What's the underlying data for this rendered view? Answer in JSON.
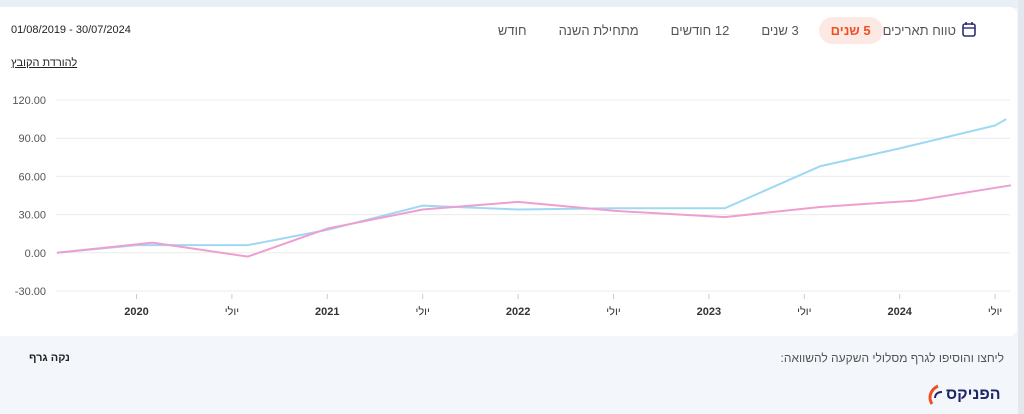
{
  "header": {
    "date_range": "01/08/2019 - 30/07/2024",
    "download_link": "להורדת הקובץ",
    "tabs": [
      {
        "label": "חודש",
        "active": false
      },
      {
        "label": "מתחילת השנה",
        "active": false
      },
      {
        "label": "12 חודשים",
        "active": false
      },
      {
        "label": "3 שנים",
        "active": false
      },
      {
        "label": "5 שנים",
        "active": true
      }
    ],
    "date_range_button": "טווח תאריכים",
    "date_range_icon": "calendar-icon"
  },
  "footer": {
    "compare_text": "ליחצו והוסיפו לגרף מסלולי השקעה להשוואה:",
    "clear_chart": "נקה גרף",
    "logo_text": "הפניקס"
  },
  "colors": {
    "accent": "#f04e23",
    "series_blue": "#9fd8f5",
    "series_pink": "#ee9fcf"
  },
  "chart_data": {
    "type": "line",
    "title": "",
    "xlabel": "",
    "ylabel": "",
    "x_unit": "months since 08/2019",
    "xlim": [
      0,
      60
    ],
    "ylim": [
      -30,
      120
    ],
    "y_ticks": [
      "120.00",
      "90.00",
      "60.00",
      "30.00",
      "0.00",
      "-30.00"
    ],
    "y_tick_values": [
      120,
      90,
      60,
      30,
      0,
      -30
    ],
    "x_ticks": [
      {
        "month": 5,
        "label": "2020",
        "bold": true
      },
      {
        "month": 11,
        "label": "יולי",
        "bold": false
      },
      {
        "month": 17,
        "label": "2021",
        "bold": true
      },
      {
        "month": 23,
        "label": "יולי",
        "bold": false
      },
      {
        "month": 29,
        "label": "2022",
        "bold": true
      },
      {
        "month": 35,
        "label": "יולי",
        "bold": false
      },
      {
        "month": 41,
        "label": "2023",
        "bold": true
      },
      {
        "month": 47,
        "label": "יולי",
        "bold": false
      },
      {
        "month": 53,
        "label": "2024",
        "bold": true
      },
      {
        "month": 59,
        "label": "יולי",
        "bold": false
      }
    ],
    "grid": true,
    "series": [
      {
        "name": "blue",
        "color": "#9fd8f5",
        "points": [
          [
            0,
            0
          ],
          [
            5,
            6
          ],
          [
            12,
            6
          ],
          [
            17,
            18
          ],
          [
            23,
            37
          ],
          [
            29,
            34
          ],
          [
            35,
            35
          ],
          [
            42,
            35
          ],
          [
            48,
            68
          ],
          [
            53,
            82
          ],
          [
            59,
            100
          ],
          [
            59.7,
            105
          ]
        ]
      },
      {
        "name": "pink",
        "color": "#ee9fcf",
        "points": [
          [
            0,
            0
          ],
          [
            6,
            8
          ],
          [
            12,
            -3
          ],
          [
            17,
            19
          ],
          [
            23,
            34
          ],
          [
            29,
            40
          ],
          [
            35,
            33
          ],
          [
            42,
            28
          ],
          [
            48,
            36
          ],
          [
            54,
            41
          ],
          [
            60,
            53
          ]
        ]
      }
    ]
  }
}
